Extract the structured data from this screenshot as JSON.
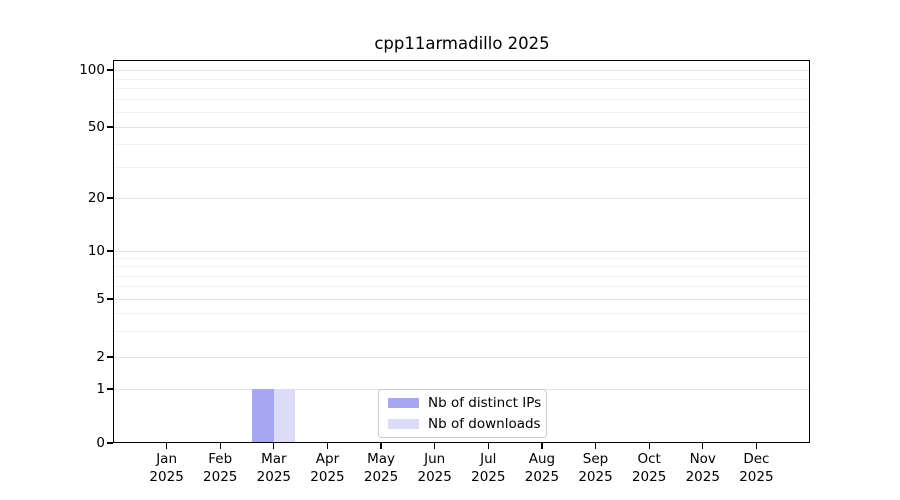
{
  "chart_data": {
    "type": "bar",
    "title": "cpp11armadillo 2025",
    "categories": [
      "Jan",
      "Feb",
      "Mar",
      "Apr",
      "May",
      "Jun",
      "Jul",
      "Aug",
      "Sep",
      "Oct",
      "Nov",
      "Dec"
    ],
    "category_year": "2025",
    "series": [
      {
        "name": "Nb of distinct IPs",
        "color": "#a6a6f1",
        "values": [
          0,
          0,
          1,
          0,
          0,
          0,
          0,
          0,
          0,
          0,
          0,
          0
        ]
      },
      {
        "name": "Nb of downloads",
        "color": "#dcdcf8",
        "values": [
          0,
          0,
          1,
          0,
          0,
          0,
          0,
          0,
          0,
          0,
          0,
          0
        ]
      }
    ],
    "y_axis": {
      "scale": "log-like",
      "range": [
        0,
        100
      ],
      "ticks": [
        0,
        1,
        2,
        5,
        10,
        20,
        50,
        100
      ],
      "minor_ticks": [
        3,
        4,
        6,
        7,
        8,
        9,
        30,
        40,
        60,
        70,
        80,
        90
      ]
    },
    "x_axis": {
      "label_format": "month over year"
    },
    "grid": true,
    "legend": {
      "position": "inside-bottom-center"
    },
    "colors": {
      "grid_major": "#e2e2e2",
      "grid_minor": "#f0f0f0",
      "axis": "#000000",
      "text": "#000000",
      "legend_border": "#cccccc",
      "background": "#ffffff"
    }
  }
}
